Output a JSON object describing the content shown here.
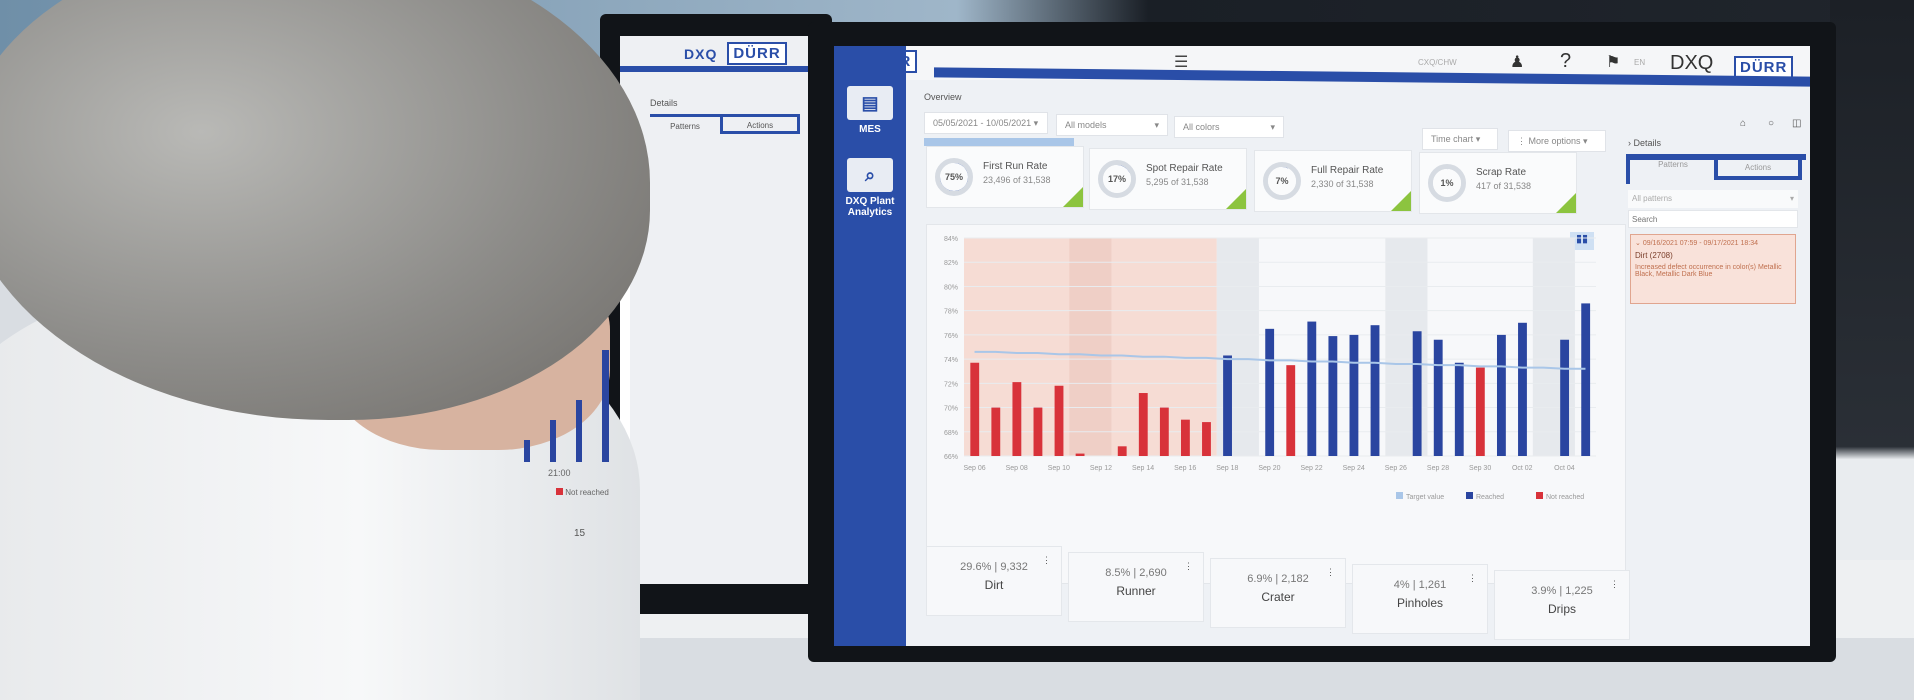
{
  "left_monitor": {
    "logos": [
      "DXQ",
      "DÜRR"
    ],
    "details_label": "Details",
    "tabs": [
      "Patterns",
      "Actions"
    ],
    "tick_label": "21:00",
    "legend": "Not reached",
    "number": "15"
  },
  "main_monitor": {
    "header": {
      "brand_logo": "DÜRR",
      "product": "DXQ",
      "language": "EN",
      "user": "CXQ/CHW"
    },
    "sidebar": {
      "items": [
        {
          "label": "MES",
          "icon": "mes-icon"
        },
        {
          "label": "DXQ Plant Analytics",
          "icon": "analytics-icon"
        }
      ]
    },
    "overview_label": "Overview",
    "filters": {
      "date_range": "05/05/2021 - 10/05/2021",
      "models": "All models",
      "colors": "All colors",
      "chart_type": "Time chart",
      "more": "More options"
    },
    "kpis": [
      {
        "percent": "75%",
        "title": "First Run Rate",
        "sub": "23,496 of 31,538",
        "fill": 75
      },
      {
        "percent": "17%",
        "title": "Spot Repair Rate",
        "sub": "5,295 of 31,538",
        "fill": 17
      },
      {
        "percent": "7%",
        "title": "Full Repair Rate",
        "sub": "2,330 of 31,538",
        "fill": 7
      },
      {
        "percent": "1%",
        "title": "Scrap Rate",
        "sub": "417 of 31,538",
        "fill": 1
      }
    ],
    "defects": [
      {
        "value": "29.6% | 9,332",
        "name": "Dirt"
      },
      {
        "value": "8.5% | 2,690",
        "name": "Runner"
      },
      {
        "value": "6.9% | 2,182",
        "name": "Crater"
      },
      {
        "value": "4% | 1,261",
        "name": "Pinholes"
      },
      {
        "value": "3.9% | 1,225",
        "name": "Drips"
      }
    ],
    "details": {
      "title": "Details",
      "tabs": [
        "Patterns",
        "Actions"
      ],
      "pattern_filter": "All patterns",
      "search_placeholder": "Search",
      "alert": {
        "range": "09/16/2021 07:59 - 09/17/2021 18:34",
        "title": "Dirt (2708)",
        "text": "Increased defect occurrence in color(s) Metallic Black, Metallic Dark Blue"
      }
    },
    "colors": {
      "reached": "#2a45a0",
      "not_reached": "#d8323a",
      "target": "#a9c6e8",
      "accent": "#2a4ea8",
      "ok": "#8cc43f"
    }
  },
  "chart_data": {
    "type": "bar",
    "ylim": [
      66,
      84
    ],
    "yticks": [
      "84%",
      "82%",
      "80%",
      "78%",
      "76%",
      "74%",
      "72%",
      "70%",
      "68%",
      "66%"
    ],
    "xtick_labels": [
      "Sep 06",
      "Sep 08",
      "Sep 10",
      "Sep 12",
      "Sep 14",
      "Sep 16",
      "Sep 18",
      "Sep 20",
      "Sep 22",
      "Sep 24",
      "Sep 26",
      "Sep 28",
      "Sep 30",
      "Oct 02",
      "Oct 04"
    ],
    "categories": [
      "Sep 06",
      "Sep 07",
      "Sep 08",
      "Sep 09",
      "Sep 10",
      "Sep 11",
      "Sep 12",
      "Sep 13",
      "Sep 14",
      "Sep 15",
      "Sep 16",
      "Sep 17",
      "Sep 18",
      "Sep 19",
      "Sep 20",
      "Sep 21",
      "Sep 22",
      "Sep 23",
      "Sep 24",
      "Sep 25",
      "Sep 26",
      "Sep 27",
      "Sep 28",
      "Sep 29",
      "Sep 30",
      "Oct 01",
      "Oct 02",
      "Oct 03",
      "Oct 04",
      "Oct 05"
    ],
    "values": [
      73.7,
      70,
      72.1,
      70,
      71.8,
      66.2,
      null,
      66.8,
      71.2,
      70,
      69,
      68.8,
      74.3,
      null,
      76.5,
      73.5,
      77.1,
      75.9,
      76,
      76.8,
      null,
      76.3,
      75.6,
      73.7,
      73.3,
      76,
      77,
      null,
      75.6,
      78.6
    ],
    "target": [
      74.6,
      74.6,
      74.5,
      74.5,
      74.4,
      74.4,
      74.3,
      74.3,
      74.2,
      74.2,
      74.1,
      74.1,
      74.0,
      74.0,
      73.9,
      73.9,
      73.8,
      73.8,
      73.7,
      73.7,
      73.6,
      73.6,
      73.5,
      73.5,
      73.4,
      73.4,
      73.3,
      73.3,
      73.2,
      73.2
    ],
    "legend": [
      "Target value",
      "Reached",
      "Not reached"
    ],
    "legend_placement": "bottom-right",
    "grid": true
  }
}
